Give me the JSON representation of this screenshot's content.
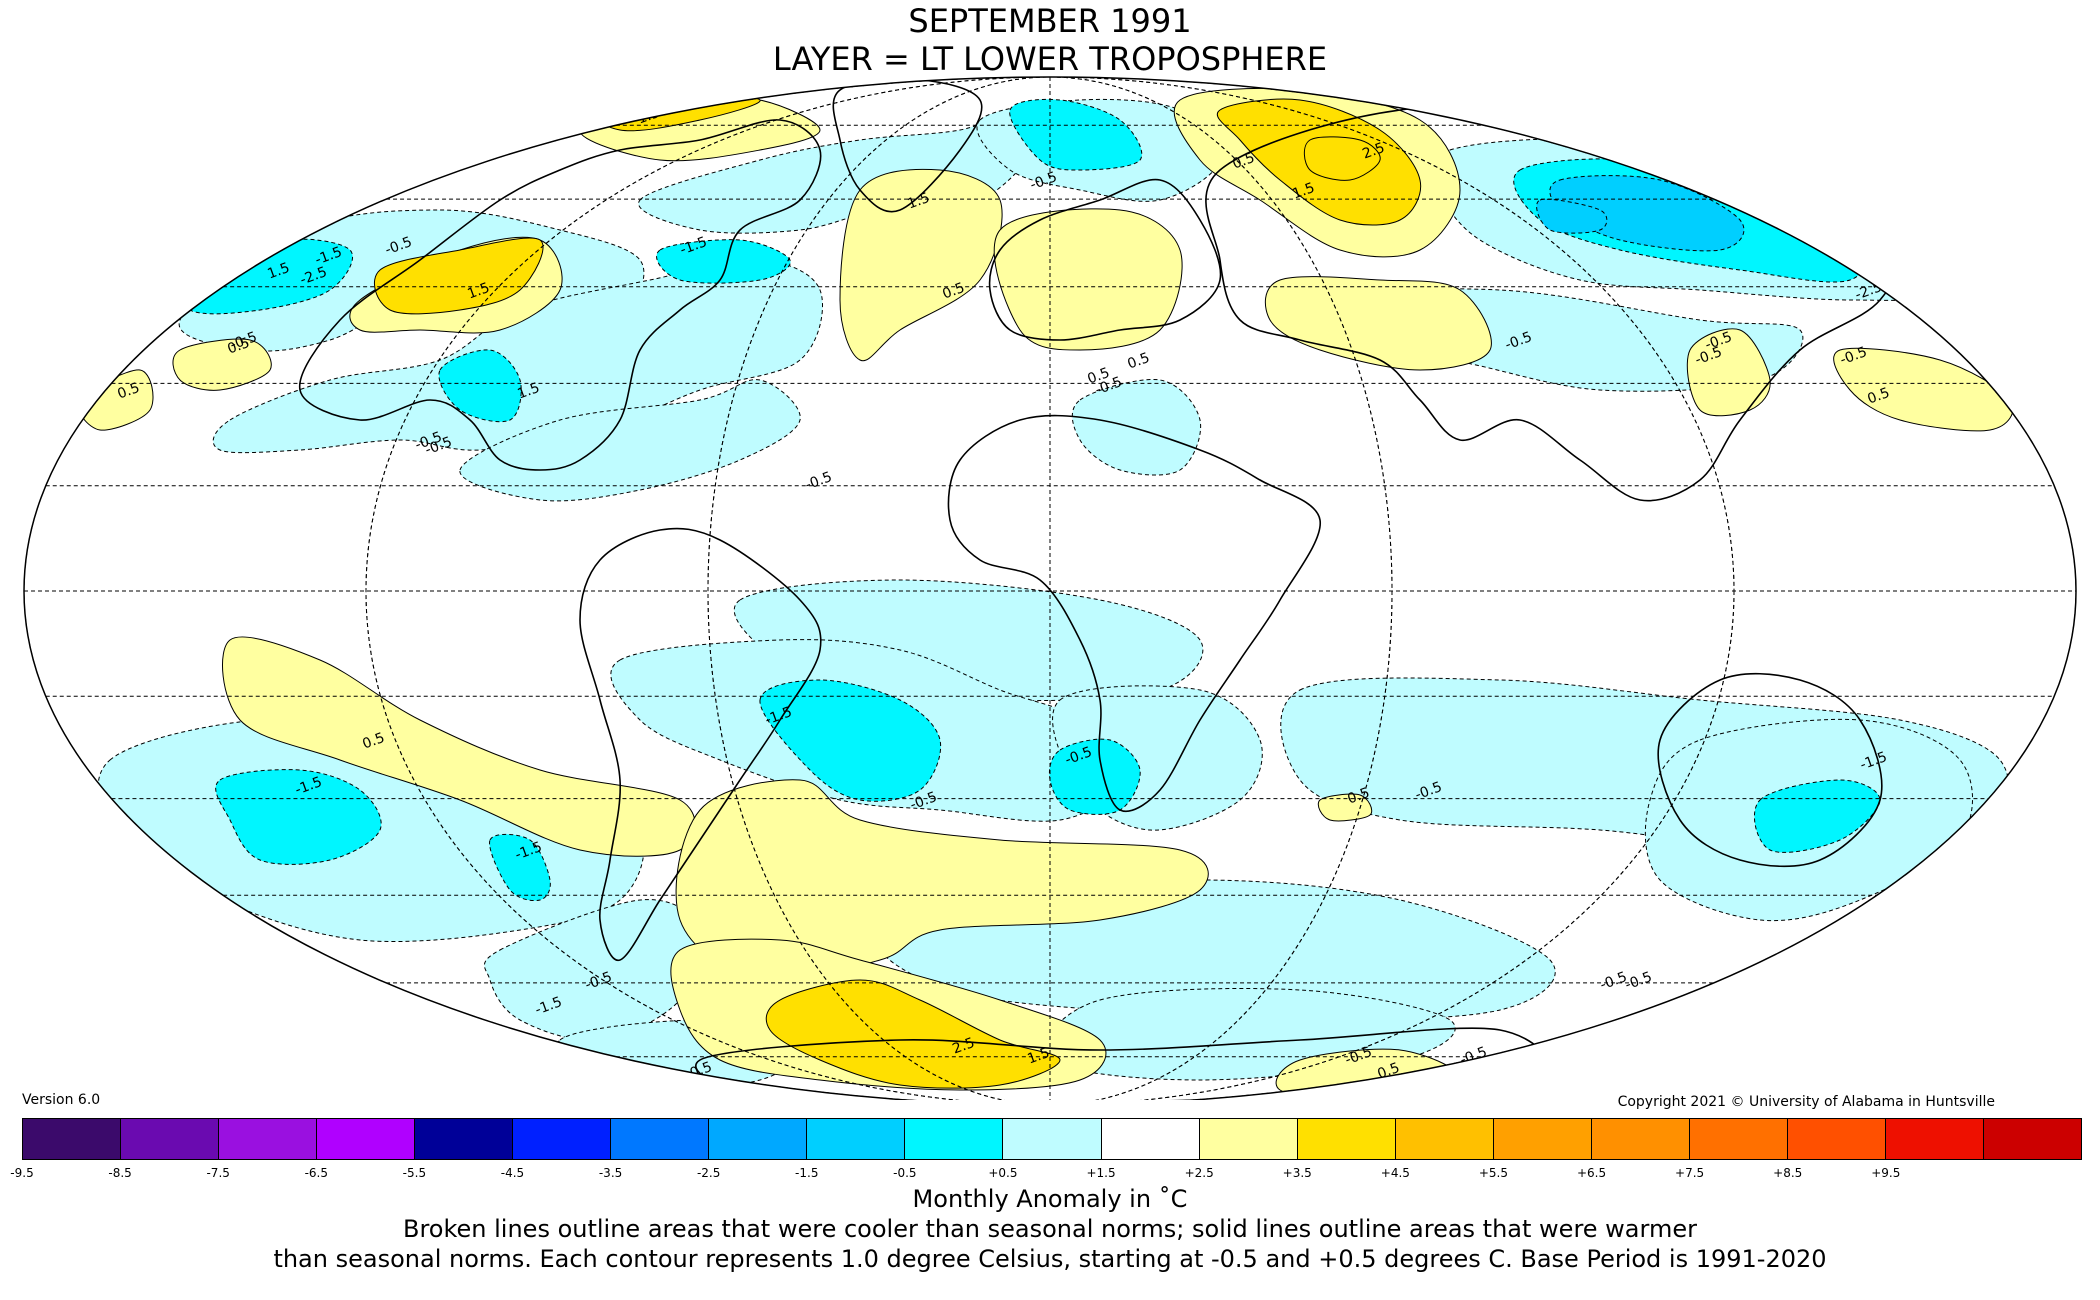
{
  "title": {
    "line1": "SEPTEMBER 1991",
    "line2": "LAYER = LT LOWER TROPOSPHERE"
  },
  "version": "Version 6.0",
  "copyright": "Copyright 2021 © University of Alabama in Huntsville",
  "colorbar": {
    "colors": [
      "#3b0a6b",
      "#6a0ab0",
      "#9a10e0",
      "#b000ff",
      "#000098",
      "#0020ff",
      "#0078ff",
      "#00a8ff",
      "#00cfff",
      "#00f6ff",
      "#bffcff",
      "#ffffff",
      "#ffffa0",
      "#ffe000",
      "#ffc000",
      "#ffa000",
      "#ff9000",
      "#ff7000",
      "#ff5000",
      "#ee1000",
      "#cc0000"
    ],
    "tick_labels": [
      "-9.5",
      "-8.5",
      "-7.5",
      "-6.5",
      "-5.5",
      "-4.5",
      "-3.5",
      "-2.5",
      "-1.5",
      "-0.5",
      "+0.5",
      "+1.5",
      "+2.5",
      "+3.5",
      "+4.5",
      "+5.5",
      "+6.5",
      "+7.5",
      "+8.5",
      "+9.5"
    ]
  },
  "units_label": "Monthly Anomaly in ˚C",
  "notes": {
    "line1": "Broken lines outline areas that were cooler than seasonal norms; solid lines outline areas that were warmer",
    "line2": "than seasonal norms. Each contour represents 1.0 degree Celsius, starting at -0.5 and +0.5 degrees C. Base Period is 1991-2020"
  },
  "map": {
    "projection": "Mollweide",
    "color_cold_1": "#bffcff",
    "color_cold_2": "#00f6ff",
    "color_cold_3": "#00cfff",
    "color_warm_1": "#ffffa0",
    "color_warm_2": "#ffe000",
    "contour_labels": [
      "1.5",
      "1.5",
      "-0.5",
      "1.5",
      "0.5",
      "-0.5",
      "2.5",
      "1.5",
      "0.5",
      "-1.5",
      "-2.5",
      "-1.5",
      "-0.5",
      "1.5",
      "-2.5",
      "-0.5",
      "0.5",
      "-0.5",
      "-0.5",
      "1.5",
      "-0.5",
      "-0.5",
      "-0.5",
      "0.5",
      "0.5",
      "-1.5",
      "-0.5",
      "-0.5",
      "-1.5",
      "0.5",
      "-1.5",
      "-1.5",
      "0.5",
      "-0.5",
      "-0.5",
      "-1.5",
      "-0.5",
      "-0.5",
      "-0.5",
      "-0.5",
      "2.5",
      "1.5",
      "0.5",
      "0.5",
      "1.5",
      "0.5",
      "-0.5",
      "-0.5",
      "-0.5",
      "-0.5"
    ]
  }
}
